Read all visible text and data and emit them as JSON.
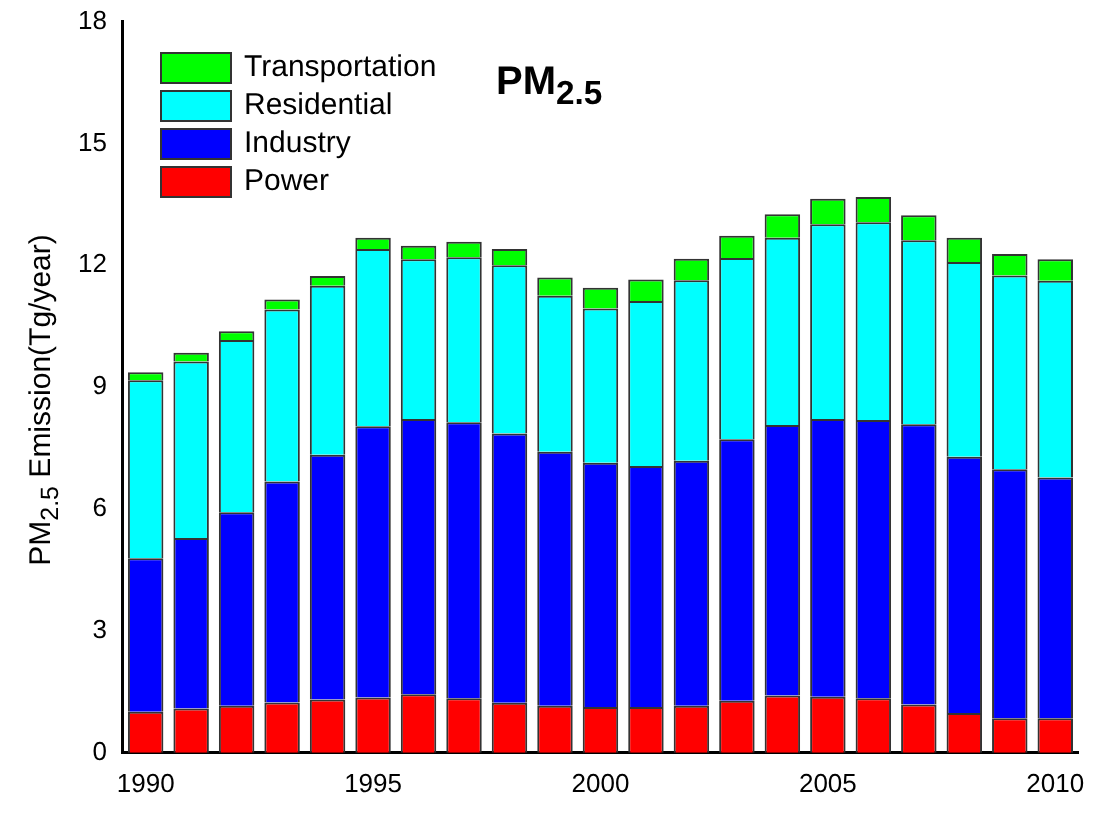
{
  "chart_data": {
    "type": "bar",
    "title": "PM$_{2.5}$",
    "ylabel": "PM$_{2.5}$ Emission(Tg/year)",
    "categories": [
      "1990",
      null,
      null,
      null,
      null,
      "1995",
      null,
      null,
      null,
      null,
      "2000",
      null,
      null,
      null,
      null,
      "2005",
      null,
      null,
      null,
      null,
      "2010"
    ],
    "stacked": true,
    "ylim": [
      0,
      18
    ],
    "yticks": [
      0,
      3,
      6,
      9,
      12,
      15,
      18
    ],
    "grid": false,
    "legend": "top left",
    "series": [
      {
        "name": "Power",
        "color": "#ff0000",
        "values": [
          1.01,
          1.09,
          1.16,
          1.24,
          1.31,
          1.36,
          1.44,
          1.34,
          1.23,
          1.16,
          1.13,
          1.13,
          1.16,
          1.28,
          1.41,
          1.38,
          1.34,
          1.19,
          0.98,
          0.85,
          0.85
        ]
      },
      {
        "name": "Industry",
        "color": "#0000ff",
        "values": [
          3.78,
          4.2,
          4.76,
          5.44,
          6.03,
          6.68,
          6.78,
          6.8,
          6.63,
          6.25,
          6.01,
          5.93,
          6.03,
          6.44,
          6.66,
          6.84,
          6.85,
          6.9,
          6.31,
          6.13,
          5.93
        ]
      },
      {
        "name": "Residential",
        "color": "#00ffff",
        "values": [
          4.38,
          4.34,
          4.24,
          4.23,
          4.16,
          4.36,
          3.93,
          4.06,
          4.14,
          3.84,
          3.8,
          4.06,
          4.44,
          4.46,
          4.61,
          4.79,
          4.87,
          4.53,
          4.79,
          4.77,
          4.84
        ]
      },
      {
        "name": "Transportation",
        "color": "#00ff00",
        "values": [
          0.2,
          0.22,
          0.22,
          0.25,
          0.24,
          0.28,
          0.33,
          0.38,
          0.4,
          0.45,
          0.51,
          0.53,
          0.53,
          0.55,
          0.58,
          0.63,
          0.62,
          0.61,
          0.6,
          0.53,
          0.53
        ]
      }
    ]
  }
}
